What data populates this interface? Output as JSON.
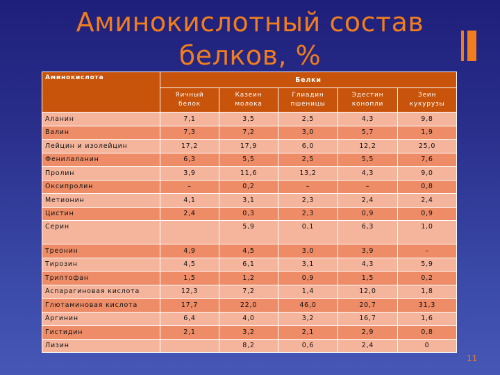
{
  "title": {
    "line1": "Аминокислотный состав",
    "line2": "белков, %"
  },
  "page_number": "11",
  "colors": {
    "background": "#2a2f8c",
    "accent": "#f07d1e",
    "header": "#c8530a",
    "row_light": "#f5b59d",
    "row_dark": "#ed8c66"
  },
  "table": {
    "header_amino": "Аминокислота",
    "header_proteins": "Белки",
    "columns": [
      {
        "line1": "Яичный",
        "line2": "белок"
      },
      {
        "line1": "Казеин",
        "line2": "молока"
      },
      {
        "line1": "Глиадин",
        "line2": "пшеницы"
      },
      {
        "line1": "Эдестин",
        "line2": "конопли"
      },
      {
        "line1": "Зеин",
        "line2": "кукурузы"
      }
    ],
    "rows": [
      {
        "name": "Аланин",
        "values": [
          "7,1",
          "3,5",
          "2,5",
          "4,3",
          "9,8"
        ]
      },
      {
        "name": "Валин",
        "values": [
          "7,3",
          "7,2",
          "3,0",
          "5,7",
          "1,9"
        ]
      },
      {
        "name": "Лейцин и изолейцин",
        "values": [
          "17,2",
          "17,9",
          "6,0",
          "12,2",
          "25,0"
        ]
      },
      {
        "name": "Фенилаланин",
        "values": [
          "6,3",
          "5,5",
          "2,5",
          "5,5",
          "7,6"
        ]
      },
      {
        "name": "Пролин",
        "values": [
          "3,9",
          "11,6",
          "13,2",
          "4,3",
          "9,0"
        ]
      },
      {
        "name": "Оксипролин",
        "values": [
          "–",
          "0,2",
          "–",
          "–",
          "0,8"
        ]
      },
      {
        "name": "Метионин",
        "values": [
          "4,1",
          "3,1",
          "2,3",
          "2,4",
          "2,4"
        ]
      },
      {
        "name": "Цистин",
        "values": [
          "2,4",
          "0,3",
          "2,3",
          "0,9",
          "0,9"
        ]
      },
      {
        "name": "Серин",
        "values": [
          "",
          "5,9",
          "0,1",
          "6,3",
          "1,0"
        ]
      },
      {
        "name": "Треонин",
        "values": [
          "4,9",
          "4,5",
          "3,0",
          "3,9",
          "–"
        ]
      },
      {
        "name": "Тирозин",
        "values": [
          "4,5",
          "6,1",
          "3,1",
          "4,3",
          "5,9"
        ]
      },
      {
        "name": "Триптофан",
        "values": [
          "1,5",
          "1,2",
          "0,9",
          "1,5",
          "0,2"
        ]
      },
      {
        "name": "Аспарагиновая кислота",
        "values": [
          "12,3",
          "7,2",
          "1,4",
          "12,0",
          "1,8"
        ]
      },
      {
        "name": "Глютаминовая кислота",
        "values": [
          "17,7",
          "22,0",
          "46,0",
          "20,7",
          "31,3"
        ]
      },
      {
        "name": "Аргинин",
        "values": [
          "6,4",
          "4,0",
          "3,2",
          "16,7",
          "1,6"
        ]
      },
      {
        "name": "Гистидин",
        "values": [
          "2,1",
          "3,2",
          "2,1",
          "2,9",
          "0,8"
        ]
      },
      {
        "name": "Лизин",
        "values": [
          "",
          "8,2",
          "0,6",
          "2,4",
          "0"
        ]
      }
    ]
  }
}
